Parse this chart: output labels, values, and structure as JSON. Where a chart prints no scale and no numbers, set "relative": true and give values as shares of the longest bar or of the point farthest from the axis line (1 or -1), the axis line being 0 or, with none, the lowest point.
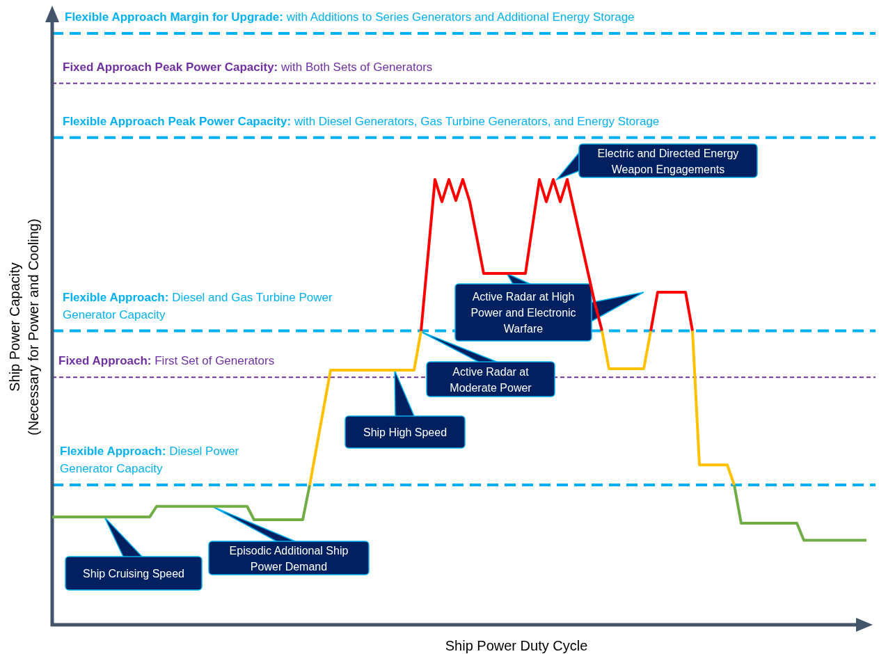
{
  "chart_data": {
    "type": "line",
    "relative": true,
    "xlabel": "Ship Power Duty Cycle",
    "ylabel": "Ship Power Capacity\n(Necessary for Power and Cooling)",
    "categories": [
      null,
      null,
      null,
      null,
      null,
      null,
      null,
      null,
      null,
      null,
      null,
      null,
      null,
      null,
      null,
      null,
      null,
      null,
      null,
      null,
      null,
      null,
      null,
      null,
      null,
      null,
      null,
      null,
      null,
      null,
      null,
      null,
      null,
      null,
      null,
      null,
      null,
      null,
      null,
      null,
      null,
      null,
      null,
      null,
      null,
      null,
      null,
      null,
      null,
      null,
      null,
      null,
      null,
      null,
      null,
      null,
      null,
      null,
      null,
      null,
      null,
      null,
      null,
      null,
      null,
      null,
      null,
      null,
      null,
      null,
      null,
      null,
      null,
      null,
      null,
      null,
      null,
      null,
      null,
      null,
      null,
      null,
      null,
      null,
      null,
      null,
      null,
      null,
      null,
      null,
      null,
      null,
      null,
      null,
      null,
      null,
      null,
      null,
      null,
      null,
      null,
      null,
      null,
      null,
      null,
      null,
      null,
      null,
      null,
      null,
      null,
      null,
      null,
      null,
      null,
      null,
      null,
      null
    ],
    "series": [
      {
        "color": "#70ad47",
        "values": [
          0.242,
          0.242,
          0.242,
          0.242,
          0.242,
          0.242,
          0.242,
          0.242,
          0.242,
          0.242,
          0.242,
          0.242,
          0.242,
          0.242,
          0.242,
          0.266,
          0.266,
          0.266,
          0.266,
          0.266,
          0.266,
          0.266,
          0.266,
          0.266,
          0.266,
          0.266,
          0.266,
          0.266,
          0.266,
          0.236,
          0.236,
          0.236,
          0.236,
          0.236,
          0.236,
          0.236,
          0.236,
          0.314,
          null,
          null,
          null,
          null,
          null,
          null,
          null,
          null,
          null,
          null,
          null,
          null,
          null,
          null,
          null,
          null,
          null,
          null,
          null,
          null,
          null,
          null,
          null,
          null,
          null,
          null,
          null,
          null,
          null,
          null,
          null,
          null,
          null,
          null,
          null,
          null,
          null,
          null,
          null,
          null,
          null,
          null,
          null,
          null,
          null,
          null,
          null,
          null,
          null,
          null,
          null,
          null,
          null,
          null,
          null,
          null,
          null,
          null,
          null,
          null,
          null,
          null,
          null,
          null,
          null,
          null,
          null,
          null,
          null,
          null,
          null,
          null,
          null,
          null,
          null,
          null,
          null,
          null,
          null,
          null
        ]
      },
      {
        "color": "#ffc000",
        "values": [
          null,
          null,
          null,
          null,
          null,
          null,
          null,
          null,
          null,
          null,
          null,
          null,
          null,
          null,
          null,
          null,
          null,
          null,
          null,
          null,
          null,
          null,
          null,
          null,
          null,
          null,
          null,
          null,
          null,
          null,
          null,
          null,
          null,
          null,
          null,
          null,
          null,
          0.314,
          0.4,
          0.486,
          0.572,
          0.572,
          0.572,
          0.572,
          0.572,
          0.572,
          0.572,
          0.572,
          0.572,
          0.572,
          0.572,
          0.572,
          0.572,
          0.66,
          null,
          null,
          null,
          null,
          null,
          null,
          null,
          null,
          null,
          null,
          null,
          null,
          null,
          null,
          null,
          null,
          null,
          null,
          null,
          null,
          null,
          null,
          null,
          null,
          null,
          null,
          null,
          null,
          null,
          null,
          null,
          null,
          null,
          null,
          null,
          null,
          null,
          null,
          null,
          null,
          null,
          null,
          null,
          null,
          null,
          null,
          null,
          null,
          null,
          null,
          null,
          null,
          null,
          null,
          null,
          null,
          null,
          null,
          null,
          null,
          null,
          null,
          null,
          null
        ]
      },
      {
        "color": "#ff0000",
        "values": [
          null,
          null,
          null,
          null,
          null,
          null,
          null,
          null,
          null,
          null,
          null,
          null,
          null,
          null,
          null,
          null,
          null,
          null,
          null,
          null,
          null,
          null,
          null,
          null,
          null,
          null,
          null,
          null,
          null,
          null,
          null,
          null,
          null,
          null,
          null,
          null,
          null,
          null,
          null,
          null,
          null,
          null,
          null,
          null,
          null,
          null,
          null,
          null,
          null,
          null,
          null,
          null,
          null,
          0.66,
          0.83,
          1,
          0.95,
          1,
          0.953,
          1,
          0.95,
          0.87,
          0.789,
          0.789,
          0.789,
          0.789,
          0.789,
          0.789,
          0.789,
          0.895,
          1,
          0.95,
          1,
          0.95,
          1,
          0.93,
          0.86,
          0.79,
          0.72,
          0.66,
          null,
          null,
          null,
          null,
          null,
          null,
          null,
          null,
          null,
          null,
          null,
          null,
          null,
          null,
          null,
          null,
          null,
          null,
          null,
          null,
          null,
          null,
          null,
          null,
          null,
          null,
          null,
          null,
          null,
          null,
          null,
          null,
          null,
          null,
          null,
          null,
          null,
          null
        ]
      },
      {
        "color": "#ffc000",
        "values": [
          null,
          null,
          null,
          null,
          null,
          null,
          null,
          null,
          null,
          null,
          null,
          null,
          null,
          null,
          null,
          null,
          null,
          null,
          null,
          null,
          null,
          null,
          null,
          null,
          null,
          null,
          null,
          null,
          null,
          null,
          null,
          null,
          null,
          null,
          null,
          null,
          null,
          null,
          null,
          null,
          null,
          null,
          null,
          null,
          null,
          null,
          null,
          null,
          null,
          null,
          null,
          null,
          null,
          null,
          null,
          null,
          null,
          null,
          null,
          null,
          null,
          null,
          null,
          null,
          null,
          null,
          null,
          null,
          null,
          null,
          null,
          null,
          null,
          null,
          null,
          null,
          null,
          null,
          null,
          0.66,
          0.575,
          0.575,
          0.575,
          0.575,
          0.575,
          0.575,
          0.66,
          null,
          null,
          null,
          null,
          null,
          null,
          null,
          null,
          null,
          null,
          null,
          null,
          null,
          null,
          null,
          null,
          null,
          null,
          null,
          null,
          null,
          null,
          null,
          null,
          null,
          null,
          null,
          null,
          null,
          null,
          null
        ]
      },
      {
        "color": "#ff0000",
        "values": [
          null,
          null,
          null,
          null,
          null,
          null,
          null,
          null,
          null,
          null,
          null,
          null,
          null,
          null,
          null,
          null,
          null,
          null,
          null,
          null,
          null,
          null,
          null,
          null,
          null,
          null,
          null,
          null,
          null,
          null,
          null,
          null,
          null,
          null,
          null,
          null,
          null,
          null,
          null,
          null,
          null,
          null,
          null,
          null,
          null,
          null,
          null,
          null,
          null,
          null,
          null,
          null,
          null,
          null,
          null,
          null,
          null,
          null,
          null,
          null,
          null,
          null,
          null,
          null,
          null,
          null,
          null,
          null,
          null,
          null,
          null,
          null,
          null,
          null,
          null,
          null,
          null,
          null,
          null,
          null,
          null,
          null,
          null,
          null,
          null,
          null,
          0.66,
          0.747,
          0.747,
          0.747,
          0.747,
          0.747,
          0.66,
          null,
          null,
          null,
          null,
          null,
          null,
          null,
          null,
          null,
          null,
          null,
          null,
          null,
          null,
          null,
          null,
          null,
          null,
          null,
          null,
          null,
          null,
          null,
          null,
          null
        ]
      },
      {
        "color": "#ffc000",
        "values": [
          null,
          null,
          null,
          null,
          null,
          null,
          null,
          null,
          null,
          null,
          null,
          null,
          null,
          null,
          null,
          null,
          null,
          null,
          null,
          null,
          null,
          null,
          null,
          null,
          null,
          null,
          null,
          null,
          null,
          null,
          null,
          null,
          null,
          null,
          null,
          null,
          null,
          null,
          null,
          null,
          null,
          null,
          null,
          null,
          null,
          null,
          null,
          null,
          null,
          null,
          null,
          null,
          null,
          null,
          null,
          null,
          null,
          null,
          null,
          null,
          null,
          null,
          null,
          null,
          null,
          null,
          null,
          null,
          null,
          null,
          null,
          null,
          null,
          null,
          null,
          null,
          null,
          null,
          null,
          null,
          null,
          null,
          null,
          null,
          null,
          null,
          null,
          null,
          null,
          null,
          null,
          null,
          0.66,
          0.359,
          0.359,
          0.359,
          0.359,
          0.359,
          0.314,
          null,
          null,
          null,
          null,
          null,
          null,
          null,
          null,
          null,
          null,
          null,
          null,
          null,
          null,
          null,
          null,
          null,
          null,
          null
        ]
      },
      {
        "color": "#70ad47",
        "values": [
          null,
          null,
          null,
          null,
          null,
          null,
          null,
          null,
          null,
          null,
          null,
          null,
          null,
          null,
          null,
          null,
          null,
          null,
          null,
          null,
          null,
          null,
          null,
          null,
          null,
          null,
          null,
          null,
          null,
          null,
          null,
          null,
          null,
          null,
          null,
          null,
          null,
          null,
          null,
          null,
          null,
          null,
          null,
          null,
          null,
          null,
          null,
          null,
          null,
          null,
          null,
          null,
          null,
          null,
          null,
          null,
          null,
          null,
          null,
          null,
          null,
          null,
          null,
          null,
          null,
          null,
          null,
          null,
          null,
          null,
          null,
          null,
          null,
          null,
          null,
          null,
          null,
          null,
          null,
          null,
          null,
          null,
          null,
          null,
          null,
          null,
          null,
          null,
          null,
          null,
          null,
          null,
          null,
          null,
          null,
          null,
          null,
          null,
          0.314,
          0.228,
          0.228,
          0.228,
          0.228,
          0.228,
          0.228,
          0.228,
          0.228,
          0.228,
          0.19,
          0.19,
          0.19,
          0.19,
          0.19,
          0.19,
          0.19,
          0.19,
          0.19,
          0.19
        ]
      }
    ],
    "ref_lines": [
      {
        "axis": "y",
        "value": 1.328,
        "label": "Flexible Approach Margin for Upgrade: with Additions to Series Generators and Additional Energy Storage",
        "color": "#00b0f0",
        "line_style": "dashed"
      },
      {
        "axis": "y",
        "value": 1.216,
        "label": "Fixed Approach Peak Power Capacity: with Both Sets of Generators",
        "color": "#7030a0",
        "line_style": "dashed"
      },
      {
        "axis": "y",
        "value": 1.094,
        "label": "Flexible Approach Peak Power Capacity:  with Diesel Generators, Gas Turbine Generators, and Energy Storage",
        "color": "#00b0f0",
        "line_style": "dashed"
      },
      {
        "axis": "y",
        "value": 0.66,
        "label": "Flexible Approach: Diesel and Gas Turbine Power Generator Capacity",
        "color": "#00b0f0",
        "line_style": "dashed"
      },
      {
        "axis": "y",
        "value": 0.556,
        "label": "Fixed Approach: First Set of Generators",
        "color": "#7030a0",
        "line_style": "dashed"
      },
      {
        "axis": "y",
        "value": 0.314,
        "label": "Flexible Approach: Diesel Power Generator Capacity",
        "color": "#00b0f0",
        "line_style": "dashed"
      }
    ],
    "annotations": [
      "Ship Cruising Speed",
      "Episodic Additional Ship Power Demand",
      "Ship High Speed",
      "Active Radar at Moderate Power",
      "Active Radar at High Power and Electronic Warfare",
      "Electric and Directed Energy Weapon Engagements"
    ]
  }
}
